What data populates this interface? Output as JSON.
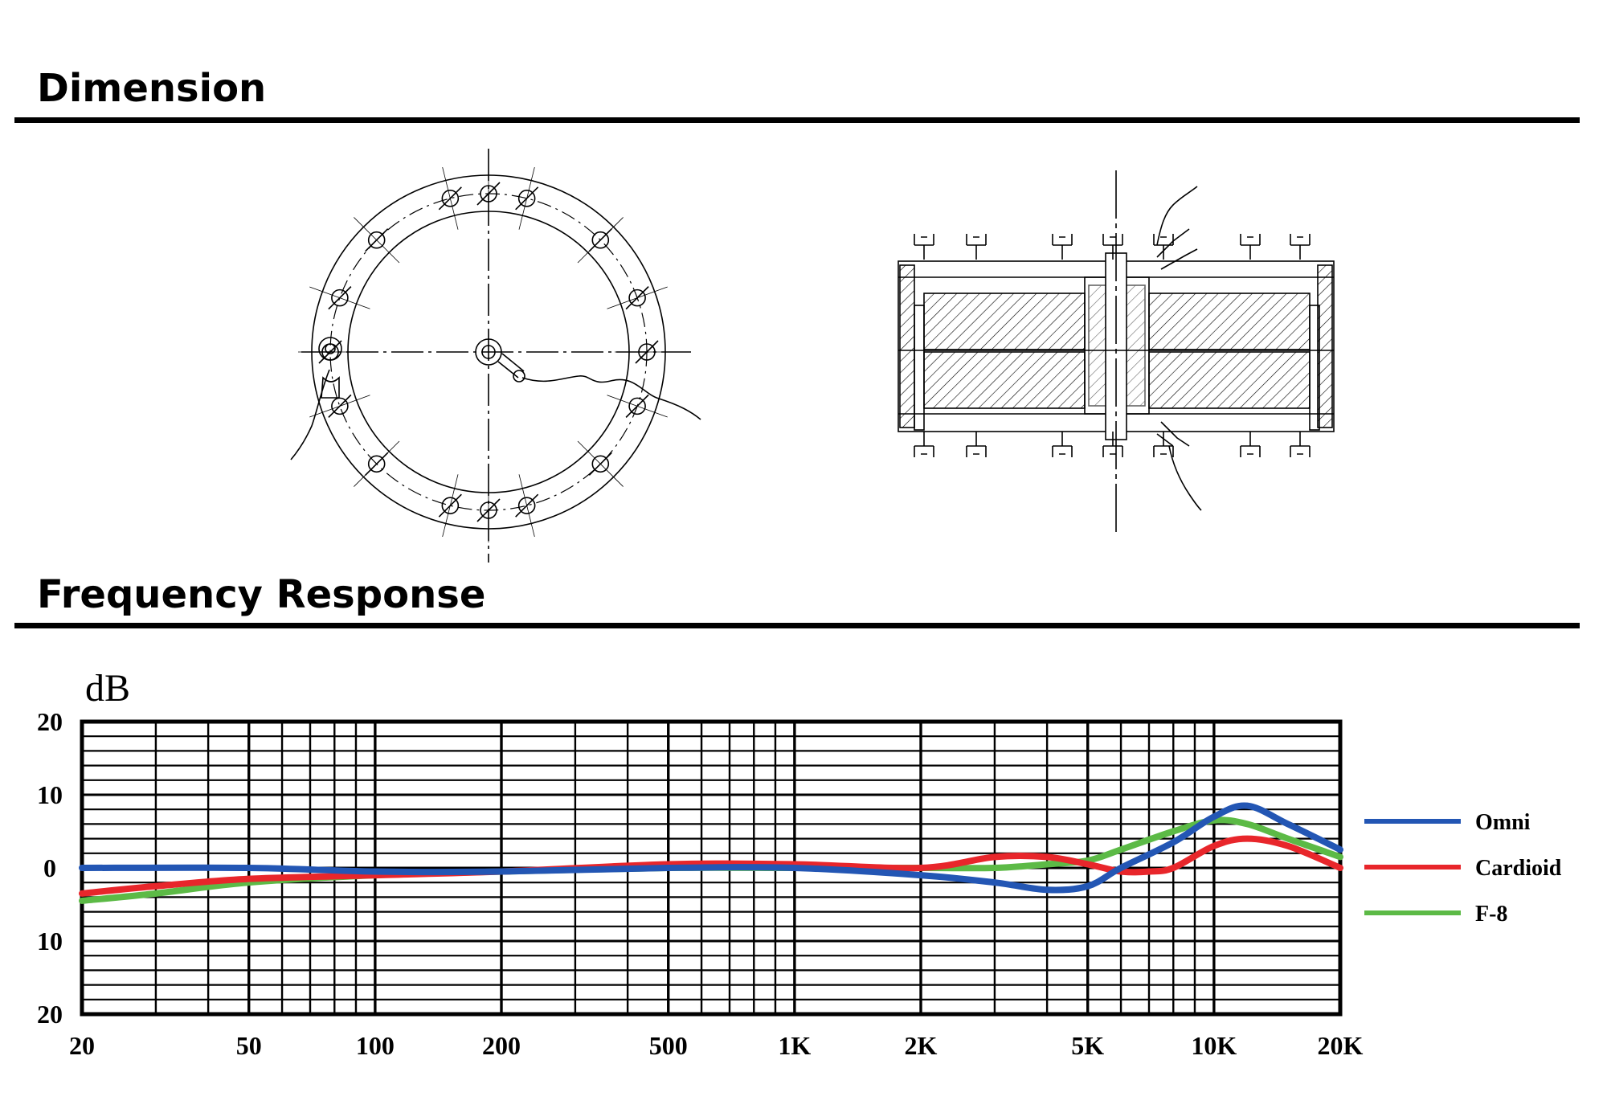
{
  "sections": {
    "dimension_title": "Dimension",
    "frequency_title": "Frequency Response"
  },
  "colors": {
    "omni": "#2356b4",
    "cardioid": "#e8262b",
    "figure8": "#5cba46",
    "grid": "#000000"
  },
  "chart_data": {
    "type": "line",
    "title": "",
    "xlabel": "",
    "ylabel": "dB",
    "xscale": "log",
    "xlim": [
      20,
      20000
    ],
    "ylim": [
      -20,
      20
    ],
    "x_ticks": [
      20,
      50,
      100,
      200,
      500,
      1000,
      2000,
      5000,
      10000,
      20000
    ],
    "x_tick_labels": [
      "20",
      "50",
      "100",
      "200",
      "500",
      "1K",
      "2K",
      "5K",
      "10K",
      "20K"
    ],
    "y_ticks": [
      20,
      10,
      0,
      -10,
      -20
    ],
    "y_tick_labels": [
      "20",
      "10",
      "0",
      "10",
      "20"
    ],
    "grid": true,
    "legend_position": "right",
    "series": [
      {
        "name": "Omni",
        "x": [
          20,
          50,
          100,
          200,
          500,
          1000,
          2000,
          3000,
          4000,
          5000,
          6000,
          8000,
          10000,
          12000,
          15000,
          20000
        ],
        "y": [
          0,
          0,
          -0.5,
          -0.5,
          0,
          0,
          -1,
          -2,
          -3,
          -2.5,
          0,
          3.5,
          7,
          8.5,
          6,
          2.5
        ]
      },
      {
        "name": "Cardioid",
        "x": [
          20,
          30,
          50,
          100,
          200,
          500,
          1000,
          2000,
          3000,
          4000,
          5000,
          6000,
          7000,
          8000,
          10000,
          12000,
          15000,
          20000
        ],
        "y": [
          -3.5,
          -2.5,
          -1.5,
          -1,
          -0.5,
          0.5,
          0.5,
          0,
          1.5,
          1.5,
          0.5,
          -0.5,
          -0.5,
          0,
          3,
          4,
          3,
          0
        ]
      },
      {
        "name": "F-8",
        "x": [
          20,
          30,
          50,
          100,
          200,
          500,
          1000,
          2000,
          3000,
          4000,
          5000,
          6000,
          8000,
          10000,
          12000,
          15000,
          20000
        ],
        "y": [
          -4.5,
          -3.5,
          -2,
          -1,
          -0.5,
          0,
          0,
          0,
          0,
          0.5,
          1,
          2.5,
          5,
          6.5,
          6,
          4,
          1.5
        ]
      }
    ]
  }
}
